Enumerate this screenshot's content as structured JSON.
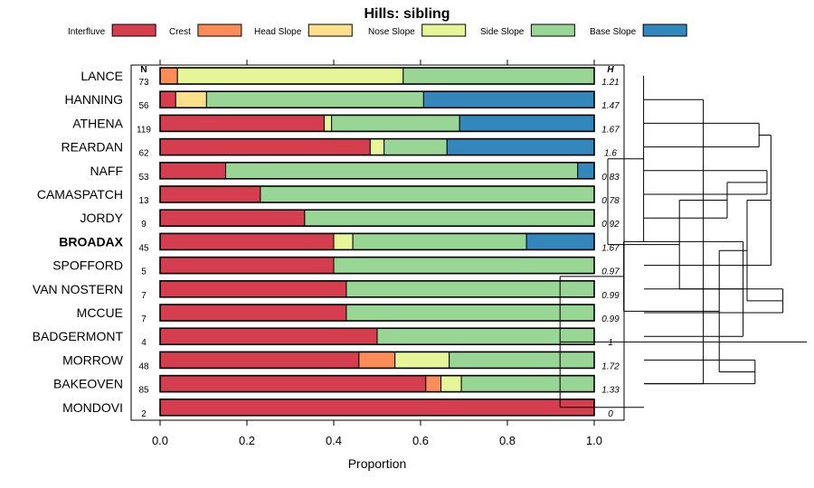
{
  "chart_data": {
    "type": "bar",
    "orientation": "horizontal",
    "stacked": true,
    "title": "Hills: sibling",
    "xlabel": "Proportion",
    "xlim": [
      0,
      1
    ],
    "x_ticks": [
      "0.0",
      "0.2",
      "0.4",
      "0.6",
      "0.8",
      "1.0"
    ],
    "n_header": "N",
    "h_header": "H",
    "legend": [
      {
        "name": "Interfluve",
        "color": "#d53e4f"
      },
      {
        "name": "Crest",
        "color": "#fc8d59"
      },
      {
        "name": "Head Slope",
        "color": "#fee08b"
      },
      {
        "name": "Nose Slope",
        "color": "#e6f598"
      },
      {
        "name": "Side Slope",
        "color": "#99d594"
      },
      {
        "name": "Base Slope",
        "color": "#3288bd"
      }
    ],
    "categories": [
      {
        "name": "LANCE",
        "n": "73",
        "h": "1.21",
        "bold": false,
        "values": [
          0.0,
          0.04,
          0.0,
          0.52,
          0.44,
          0.0
        ]
      },
      {
        "name": "HANNING",
        "n": "56",
        "h": "1.47",
        "bold": false,
        "values": [
          0.036,
          0.0,
          0.071,
          0.0,
          0.5,
          0.393
        ]
      },
      {
        "name": "ATHENA",
        "n": "119",
        "h": "1.67",
        "bold": false,
        "values": [
          0.378,
          0.0,
          0.0,
          0.017,
          0.295,
          0.31
        ]
      },
      {
        "name": "REARDAN",
        "n": "62",
        "h": "1.6",
        "bold": false,
        "values": [
          0.484,
          0.0,
          0.0,
          0.032,
          0.145,
          0.339
        ]
      },
      {
        "name": "NAFF",
        "n": "53",
        "h": "0.83",
        "bold": false,
        "values": [
          0.151,
          0.0,
          0.0,
          0.0,
          0.811,
          0.038
        ]
      },
      {
        "name": "CAMASPATCH",
        "n": "13",
        "h": "0.78",
        "bold": false,
        "values": [
          0.231,
          0.0,
          0.0,
          0.0,
          0.769,
          0.0
        ]
      },
      {
        "name": "JORDY",
        "n": "9",
        "h": "0.92",
        "bold": false,
        "values": [
          0.333,
          0.0,
          0.0,
          0.0,
          0.667,
          0.0
        ]
      },
      {
        "name": "BROADAX",
        "n": "45",
        "h": "1.67",
        "bold": true,
        "values": [
          0.4,
          0.0,
          0.0,
          0.044,
          0.4,
          0.156
        ]
      },
      {
        "name": "SPOFFORD",
        "n": "5",
        "h": "0.97",
        "bold": false,
        "values": [
          0.4,
          0.0,
          0.0,
          0.0,
          0.6,
          0.0
        ]
      },
      {
        "name": "VAN NOSTERN",
        "n": "7",
        "h": "0.99",
        "bold": false,
        "values": [
          0.429,
          0.0,
          0.0,
          0.0,
          0.571,
          0.0
        ]
      },
      {
        "name": "MCCUE",
        "n": "7",
        "h": "0.99",
        "bold": false,
        "values": [
          0.429,
          0.0,
          0.0,
          0.0,
          0.571,
          0.0
        ]
      },
      {
        "name": "BADGERMONT",
        "n": "4",
        "h": "1",
        "bold": false,
        "values": [
          0.5,
          0.0,
          0.0,
          0.0,
          0.5,
          0.0
        ]
      },
      {
        "name": "MORROW",
        "n": "48",
        "h": "1.72",
        "bold": false,
        "values": [
          0.458,
          0.083,
          0.0,
          0.125,
          0.334,
          0.0
        ]
      },
      {
        "name": "BAKEOVEN",
        "n": "85",
        "h": "1.33",
        "bold": false,
        "values": [
          0.612,
          0.035,
          0.0,
          0.047,
          0.306,
          0.0
        ]
      },
      {
        "name": "MONDOVI",
        "n": "2",
        "h": "0",
        "bold": false,
        "values": [
          1.0,
          0.0,
          0.0,
          0.0,
          0.0,
          0.0
        ]
      }
    ],
    "dendrogram": {
      "leaf_order": [
        "LANCE",
        "HANNING",
        "ATHENA",
        "REARDAN",
        "NAFF",
        "CAMASPATCH",
        "JORDY",
        "BROADAX",
        "SPOFFORD",
        "VAN NOSTERN",
        "MCCUE",
        "BADGERMONT",
        "MORROW",
        "BAKEOVEN",
        "MONDOVI"
      ],
      "merges": [
        [
          2,
          3,
          0.06
        ],
        [
          9,
          10,
          0.03
        ],
        [
          4,
          5,
          0.05
        ],
        [
          8,
          15,
          0.045
        ],
        [
          1,
          13,
          0.13
        ],
        [
          12,
          13,
          0.065
        ],
        [
          16,
          18,
          0.075
        ],
        [
          17,
          6,
          0.1
        ],
        [
          11,
          19,
          0.08
        ],
        [
          20,
          21,
          0.11
        ],
        [
          23,
          22,
          0.16
        ],
        [
          0,
          19,
          0.205
        ],
        [
          24,
          7,
          0.23
        ],
        [
          26,
          25,
          0.25
        ],
        [
          27,
          14,
          0.31
        ]
      ]
    }
  }
}
